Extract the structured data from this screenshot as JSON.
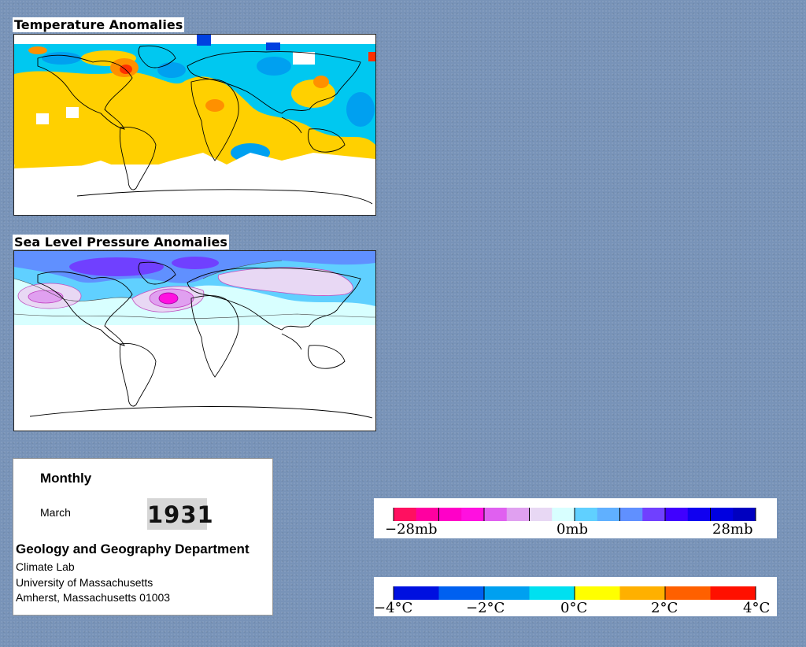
{
  "maps": {
    "temperature_title": "Temperature Anomalies",
    "pressure_title": "Sea Level Pressure Anomalies"
  },
  "info": {
    "period": "Monthly",
    "month": "March",
    "year": "1931",
    "department": "Geology and Geography Department",
    "lab": "Climate Lab",
    "university": "University of Massachusetts",
    "address": "Amherst, Massachusetts 01003"
  },
  "pressure_legend": {
    "labels": [
      "−28mb",
      "0mb",
      "28mb"
    ],
    "colors": [
      "#ff1060",
      "#ff00a0",
      "#ff00c8",
      "#ff10e0",
      "#e060f0",
      "#e0a0f0",
      "#e8d8f4",
      "#d8ffff",
      "#60d0ff",
      "#60b0ff",
      "#6090ff",
      "#7040ff",
      "#4000ff",
      "#1000f0",
      "#0000e0",
      "#0000c0"
    ]
  },
  "temperature_legend": {
    "labels": [
      "−4°C",
      "−2°C",
      "0°C",
      "2°C",
      "4°C"
    ],
    "range": [
      -4,
      4
    ],
    "colors": [
      "#0010e0",
      "#0060f0",
      "#00a0f0",
      "#00e0f0",
      "#ffff00",
      "#ffb000",
      "#ff6000",
      "#ff1000"
    ]
  }
}
